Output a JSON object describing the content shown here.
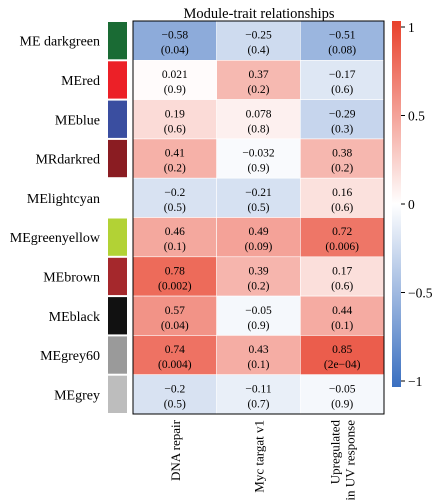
{
  "chart_data": {
    "type": "heatmap",
    "title": "Module-trait relationships",
    "rows": [
      {
        "label": "ME darkgreen",
        "color": "#1a6b34"
      },
      {
        "label": "MEred",
        "color": "#ec2027"
      },
      {
        "label": "MEblue",
        "color": "#3a4ea0"
      },
      {
        "label": "MRdarkred",
        "color": "#8a1c22"
      },
      {
        "label": "MElightcyan",
        "color": "#ffffff"
      },
      {
        "label": "MEgreenyellow",
        "color": "#b2d235"
      },
      {
        "label": "MEbrown",
        "color": "#a5282c"
      },
      {
        "label": "MEblack",
        "color": "#111111"
      },
      {
        "label": "MEgrey60",
        "color": "#9a9a9a"
      },
      {
        "label": "MEgrey",
        "color": "#bdbdbd"
      }
    ],
    "columns": [
      {
        "label": [
          "DNA repair"
        ]
      },
      {
        "label": [
          "Myc targat v1"
        ]
      },
      {
        "label": [
          "Upregulated",
          "in UV response"
        ]
      }
    ],
    "values": [
      [
        -0.58,
        -0.25,
        -0.51
      ],
      [
        0.021,
        0.37,
        -0.17
      ],
      [
        0.19,
        0.078,
        -0.29
      ],
      [
        0.41,
        -0.032,
        0.38
      ],
      [
        -0.2,
        -0.21,
        0.16
      ],
      [
        0.46,
        0.49,
        0.72
      ],
      [
        0.78,
        0.39,
        0.17
      ],
      [
        0.57,
        -0.05,
        0.44
      ],
      [
        0.74,
        0.43,
        0.85
      ],
      [
        -0.2,
        -0.11,
        -0.05
      ]
    ],
    "value_labels": [
      [
        "−0.58",
        "−0.25",
        "−0.51"
      ],
      [
        "0.021",
        "0.37",
        "−0.17"
      ],
      [
        "0.19",
        "0.078",
        "−0.29"
      ],
      [
        "0.41",
        "−0.032",
        "0.38"
      ],
      [
        "−0.2",
        "−0.21",
        "0.16"
      ],
      [
        "0.46",
        "0.49",
        "0.72"
      ],
      [
        "0.78",
        "0.39",
        "0.17"
      ],
      [
        "0.57",
        "−0.05",
        "0.44"
      ],
      [
        "0.74",
        "0.43",
        "0.85"
      ],
      [
        "−0.2",
        "−0.11",
        "−0.05"
      ]
    ],
    "p_labels": [
      [
        "(0.04)",
        "(0.4)",
        "(0.08)"
      ],
      [
        "(0.9)",
        "(0.2)",
        "(0.6)"
      ],
      [
        "(0.6)",
        "(0.8)",
        "(0.3)"
      ],
      [
        "(0.2)",
        "(0.9)",
        "(0.2)"
      ],
      [
        "(0.5)",
        "(0.5)",
        "(0.6)"
      ],
      [
        "(0.1)",
        "(0.09)",
        "(0.006)"
      ],
      [
        "(0.002)",
        "(0.2)",
        "(0.6)"
      ],
      [
        "(0.04)",
        "(0.9)",
        "(0.1)"
      ],
      [
        "(0.004)",
        "(0.1)",
        "(2e−04)"
      ],
      [
        "(0.5)",
        "(0.7)",
        "(0.9)"
      ]
    ],
    "color_scale": {
      "min": -1,
      "max": 1,
      "ticks": [
        1,
        0.5,
        0,
        -0.5,
        -1
      ],
      "tick_labels": [
        "1",
        "0.5",
        "0",
        "−0.5",
        "−1"
      ],
      "low_color": "#3a6fc0",
      "mid_color": "#ffffff",
      "high_color": "#e8412c"
    },
    "legend_placement": "right"
  }
}
